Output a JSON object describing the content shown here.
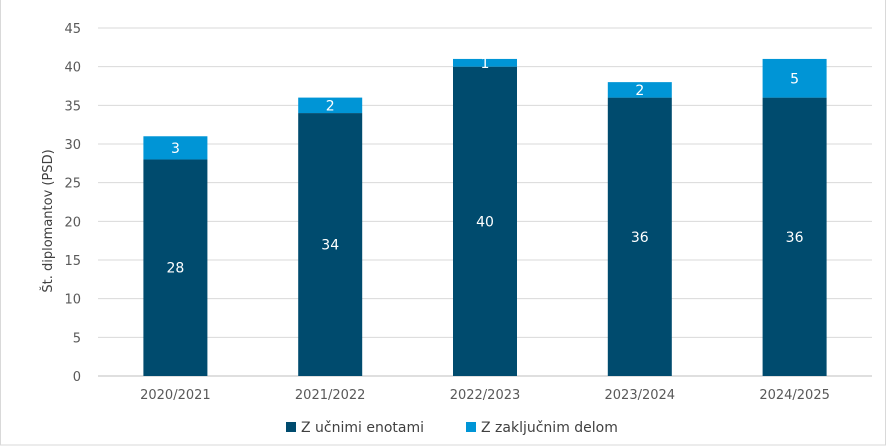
{
  "chart_data": {
    "type": "bar",
    "stacked": true,
    "categories": [
      "2020/2021",
      "2021/2022",
      "2022/2023",
      "2023/2024",
      "2024/2025"
    ],
    "series": [
      {
        "name": "Z učnimi enotami",
        "values": [
          28,
          34,
          40,
          36,
          36
        ],
        "color": "#004b6e"
      },
      {
        "name": "Z zaključnim delom",
        "values": [
          3,
          2,
          1,
          2,
          5
        ],
        "color": "#0095d6"
      }
    ],
    "ylabel": "Št. diplomantov (PSD)",
    "ylim": [
      0,
      45
    ],
    "yticks": [
      0,
      5,
      10,
      15,
      20,
      25,
      30,
      35,
      40,
      45
    ],
    "grid": true,
    "legend_position": "bottom"
  }
}
